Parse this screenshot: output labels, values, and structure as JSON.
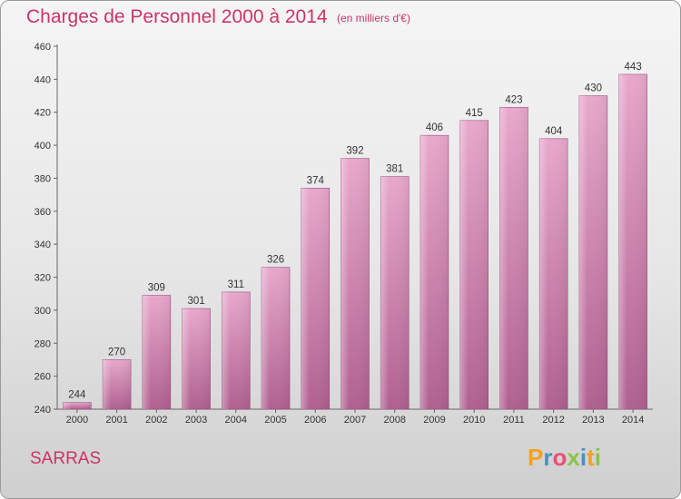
{
  "title": "Charges de Personnel 2000 à 2014",
  "subtitle": "(en milliers d'€)",
  "town": "SARRAS",
  "logo": {
    "text": "Proxiti",
    "colors": [
      "#f4a11d",
      "#4a90c8",
      "#e94e77",
      "#8bc34a",
      "#4a90c8",
      "#f4a11d",
      "#8bc34a"
    ]
  },
  "colors": {
    "bar_top": "#e8a8cc",
    "bar_bottom": "#b06090",
    "accent": "#cc3366"
  },
  "chart_data": {
    "type": "bar",
    "categories": [
      "2000",
      "2001",
      "2002",
      "2003",
      "2004",
      "2005",
      "2006",
      "2007",
      "2008",
      "2009",
      "2010",
      "2011",
      "2012",
      "2013",
      "2014"
    ],
    "values": [
      244,
      270,
      309,
      301,
      311,
      326,
      374,
      392,
      381,
      406,
      415,
      423,
      404,
      430,
      443
    ],
    "ylim": [
      240,
      460
    ],
    "yticks": [
      240,
      260,
      280,
      300,
      320,
      340,
      360,
      380,
      400,
      420,
      440,
      460
    ],
    "grid": false,
    "legend": "none"
  }
}
